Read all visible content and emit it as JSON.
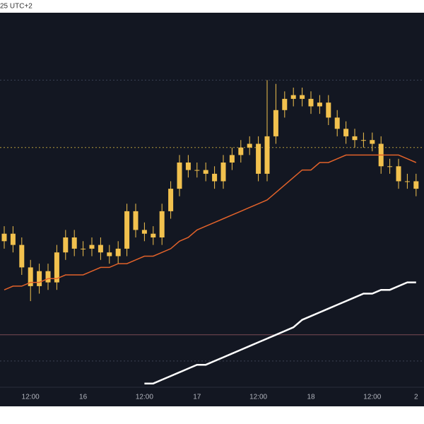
{
  "chart_data": {
    "type": "candlestick",
    "timezone_label": "25 UTC+2",
    "categories": [
      null,
      null,
      null,
      "12:00",
      null,
      null,
      null,
      null,
      null,
      "16",
      null,
      null,
      null,
      null,
      null,
      null,
      "12:00",
      null,
      null,
      null,
      null,
      null,
      "17",
      null,
      null,
      null,
      null,
      null,
      null,
      "12:00",
      null,
      null,
      null,
      null,
      null,
      "18",
      null,
      null,
      null,
      null,
      null,
      null,
      "12:00",
      null,
      null,
      null,
      null,
      "2"
    ],
    "open": [
      39,
      41,
      38,
      32,
      27,
      31,
      28,
      36,
      40,
      37,
      37,
      38,
      36,
      35,
      37,
      47,
      42,
      41,
      40,
      47,
      53,
      60,
      58,
      58,
      57,
      55,
      60,
      62,
      64,
      65,
      57,
      67,
      74,
      77,
      78,
      77,
      75,
      76,
      72,
      69,
      67,
      66,
      66,
      65,
      59,
      59,
      55,
      55
    ],
    "high": [
      43,
      43,
      40,
      34,
      33,
      33,
      38,
      42,
      42,
      39,
      40,
      40,
      38,
      39,
      49,
      49,
      44,
      43,
      49,
      55,
      62,
      62,
      60,
      60,
      59,
      62,
      64,
      66,
      67,
      67,
      82,
      81,
      79,
      80,
      80,
      79,
      78,
      78,
      74,
      71,
      69,
      68,
      68,
      67,
      61,
      61,
      57,
      57
    ],
    "low": [
      37,
      36,
      30,
      23,
      25,
      26,
      26,
      34,
      35,
      35,
      35,
      34,
      33,
      33,
      35,
      40,
      39,
      38,
      38,
      45,
      51,
      56,
      56,
      55,
      53,
      53,
      58,
      60,
      62,
      55,
      55,
      65,
      72,
      75,
      75,
      73,
      73,
      70,
      67,
      65,
      64,
      64,
      63,
      57,
      57,
      53,
      53,
      51
    ],
    "close": [
      41,
      38,
      32,
      27,
      31,
      28,
      36,
      40,
      37,
      37,
      38,
      36,
      35,
      37,
      47,
      42,
      41,
      40,
      47,
      53,
      60,
      58,
      58,
      57,
      55,
      60,
      62,
      64,
      65,
      57,
      67,
      74,
      77,
      78,
      77,
      75,
      76,
      72,
      69,
      67,
      66,
      66,
      65,
      59,
      59,
      55,
      55,
      53
    ],
    "color": "#f2c14e",
    "lines": [
      {
        "color": "#e2622a",
        "values": [
          26,
          27,
          27,
          28,
          28,
          29,
          29,
          30,
          30,
          30,
          31,
          32,
          32,
          33,
          33,
          34,
          35,
          35,
          36,
          37,
          39,
          40,
          42,
          43,
          44,
          45,
          46,
          47,
          48,
          49,
          50,
          52,
          54,
          56,
          58,
          58,
          60,
          60,
          61,
          62,
          62,
          62,
          62,
          62,
          62,
          62,
          61,
          60
        ]
      },
      {
        "color": "#ffffff",
        "values": [
          null,
          null,
          null,
          null,
          null,
          null,
          null,
          null,
          null,
          null,
          null,
          null,
          null,
          null,
          null,
          null,
          1,
          1,
          2,
          3,
          4,
          5,
          6,
          6,
          7,
          8,
          9,
          10,
          11,
          12,
          13,
          14,
          15,
          16,
          18,
          19,
          20,
          21,
          22,
          23,
          24,
          25,
          25,
          26,
          26,
          27,
          28,
          28
        ]
      }
    ],
    "reference_lines": [
      {
        "value": 82,
        "color": "#3b4254",
        "style": "dotted"
      },
      {
        "value": 64,
        "color": "#b39a3c",
        "style": "dotted"
      },
      {
        "value": 14,
        "color": "#7a4a55",
        "style": "solid"
      },
      {
        "value": 7,
        "color": "#3b4254",
        "style": "dotted"
      }
    ],
    "ylim": [
      0,
      100
    ],
    "background": "#131722"
  }
}
